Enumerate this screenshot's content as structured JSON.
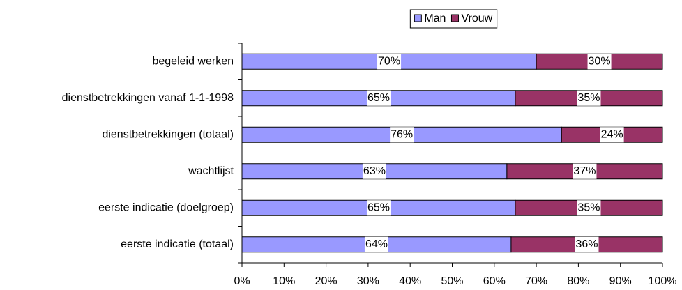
{
  "chart_data": {
    "type": "stacked_barh",
    "categories": [
      "begeleid werken",
      "dienstbetrekkingen vanaf 1-1-1998",
      "dienstbetrekkingen (totaal)",
      "wachtlijst",
      "eerste indicatie (doelgroep)",
      "eerste indicatie (totaal)"
    ],
    "series": [
      {
        "name": "Man",
        "color": "#9999ff",
        "values": [
          70,
          65,
          76,
          63,
          65,
          64
        ],
        "value_labels": [
          "70%",
          "65%",
          "76%",
          "63%",
          "65%",
          "64%"
        ]
      },
      {
        "name": "Vrouw",
        "color": "#993366",
        "values": [
          30,
          35,
          24,
          37,
          35,
          36
        ],
        "value_labels": [
          "30%",
          "35%",
          "24%",
          "37%",
          "35%",
          "36%"
        ]
      }
    ],
    "xlim": [
      0,
      100
    ],
    "xticks": [
      {
        "value": 0,
        "label": "0%"
      },
      {
        "value": 10,
        "label": "10%"
      },
      {
        "value": 20,
        "label": "20%"
      },
      {
        "value": 30,
        "label": "30%"
      },
      {
        "value": 40,
        "label": "40%"
      },
      {
        "value": 50,
        "label": "50%"
      },
      {
        "value": 60,
        "label": "60%"
      },
      {
        "value": 70,
        "label": "70%"
      },
      {
        "value": 80,
        "label": "80%"
      },
      {
        "value": 90,
        "label": "90%"
      },
      {
        "value": 100,
        "label": "100%"
      }
    ],
    "legend": "top"
  }
}
